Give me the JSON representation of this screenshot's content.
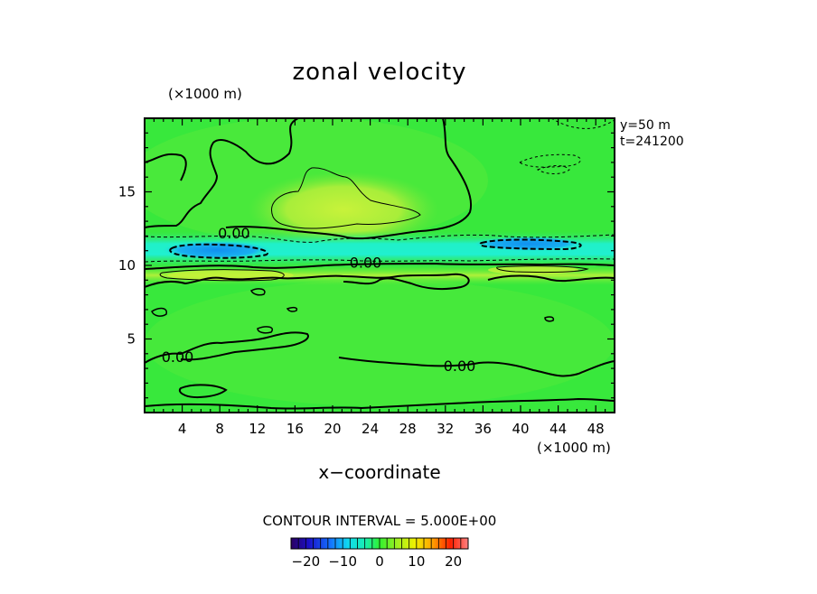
{
  "chart_data": {
    "type": "heatmap",
    "title": "zonal velocity",
    "x_unit": "(×1000 m)",
    "y_unit": "(×1000 m)",
    "xlabel": "x−coordinate",
    "info_lines": [
      "y=50  m",
      "t=241200"
    ],
    "contour_interval_text": "CONTOUR INTERVAL = 5.000E+00",
    "xlim": [
      0,
      50
    ],
    "ylim": [
      0,
      20
    ],
    "x_ticks": [
      4,
      8,
      12,
      16,
      20,
      24,
      28,
      32,
      36,
      40,
      44,
      48
    ],
    "y_ticks": [
      5,
      10,
      15
    ],
    "colorbar": {
      "range": [
        -24,
        24
      ],
      "ticks": [
        -20,
        -10,
        0,
        10,
        20
      ],
      "tick_labels": [
        "−20",
        "−10",
        "0",
        "10",
        "20"
      ]
    },
    "contour_labels": [
      {
        "text": "0.00",
        "x": 7.8,
        "y": 12.2
      },
      {
        "text": "0.00",
        "x": 21.8,
        "y": 10.2
      },
      {
        "text": "0.00",
        "x": 1.8,
        "y": 3.8
      },
      {
        "text": "0.00",
        "x": 31.8,
        "y": 3.2
      }
    ],
    "features": [
      {
        "kind": "positive_core",
        "value": 5,
        "x": [
          14,
          29
        ],
        "y": [
          12.5,
          16
        ]
      },
      {
        "kind": "negative_jet",
        "value": -5,
        "x": [
          0,
          50
        ],
        "y": [
          10.5,
          11.8
        ]
      },
      {
        "kind": "negative_core",
        "value": -10,
        "x": [
          2,
          10
        ],
        "y": [
          10.7,
          11.3
        ]
      },
      {
        "kind": "negative_core",
        "value": -10,
        "x": [
          36,
          46
        ],
        "y": [
          11.2,
          11.7
        ]
      },
      {
        "kind": "positive_band",
        "value": 5,
        "x": [
          0,
          50
        ],
        "y": [
          9,
          10
        ]
      }
    ]
  }
}
